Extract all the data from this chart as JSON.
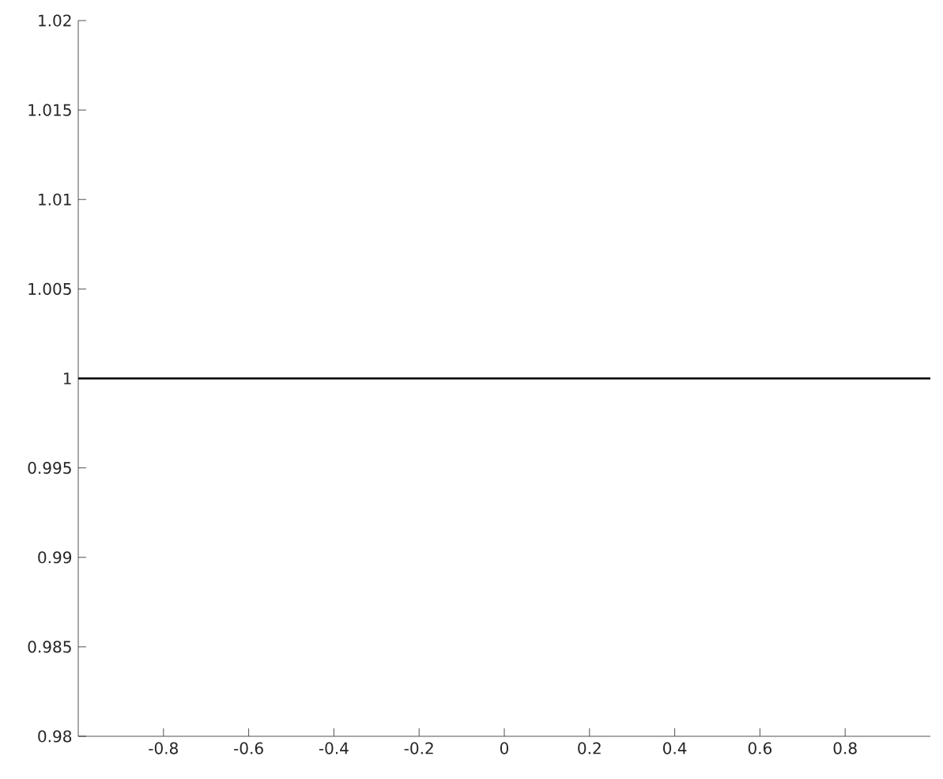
{
  "chart_data": {
    "type": "line",
    "x": [
      -1,
      1
    ],
    "values": [
      1,
      1
    ],
    "color": "#000000",
    "xlim": [
      -1,
      1
    ],
    "ylim": [
      0.98,
      1.02
    ],
    "xticks": [
      -0.8,
      -0.6,
      -0.4,
      -0.2,
      0,
      0.2,
      0.4,
      0.6,
      0.8
    ],
    "yticks": [
      0.98,
      0.985,
      0.99,
      0.995,
      1,
      1.005,
      1.01,
      1.015,
      1.02
    ],
    "grid": false
  }
}
